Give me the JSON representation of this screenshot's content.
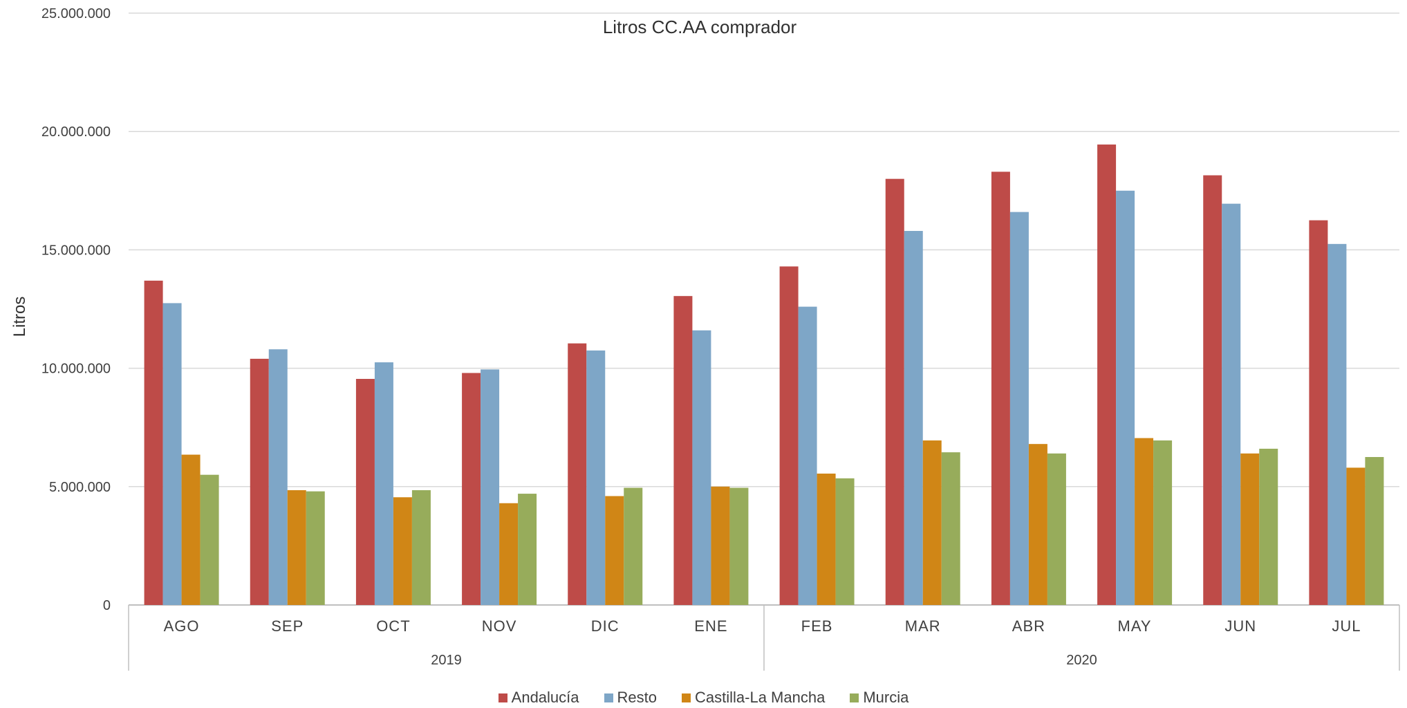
{
  "chart_data": {
    "type": "bar",
    "title": "Litros CC.AA comprador",
    "ylabel": "Litros",
    "xlabel": "",
    "ylim": [
      0,
      25000000
    ],
    "yticks": [
      0,
      5000000,
      10000000,
      15000000,
      20000000,
      25000000
    ],
    "ytick_labels": [
      "0",
      "5.000.000",
      "10.000.000",
      "15.000.000",
      "20.000.000",
      "25.000.000"
    ],
    "grid": true,
    "legend_position": "bottom",
    "categories": [
      "AGO",
      "SEP",
      "OCT",
      "NOV",
      "DIC",
      "ENE",
      "FEB",
      "MAR",
      "ABR",
      "MAY",
      "JUN",
      "JUL"
    ],
    "groups": [
      {
        "label": "2019",
        "start": 0,
        "end": 5
      },
      {
        "label": "2020",
        "start": 6,
        "end": 11
      }
    ],
    "series": [
      {
        "name": "Andalucía",
        "color": "#BE4B48",
        "values": [
          13700000,
          10400000,
          9550000,
          9800000,
          11050000,
          13050000,
          14300000,
          18000000,
          18300000,
          19450000,
          18150000,
          16250000
        ]
      },
      {
        "name": "Resto",
        "color": "#7EA6C7",
        "values": [
          12750000,
          10800000,
          10250000,
          9950000,
          10750000,
          11600000,
          12600000,
          15800000,
          16600000,
          17500000,
          16950000,
          15250000
        ]
      },
      {
        "name": "Castilla-La Mancha",
        "color": "#D08616",
        "values": [
          6350000,
          4850000,
          4550000,
          4300000,
          4600000,
          5000000,
          5550000,
          6950000,
          6800000,
          7050000,
          6400000,
          5800000
        ]
      },
      {
        "name": "Murcia",
        "color": "#97AC5B",
        "values": [
          5500000,
          4800000,
          4850000,
          4700000,
          4950000,
          4950000,
          5350000,
          6450000,
          6400000,
          6950000,
          6600000,
          6250000
        ]
      }
    ]
  }
}
